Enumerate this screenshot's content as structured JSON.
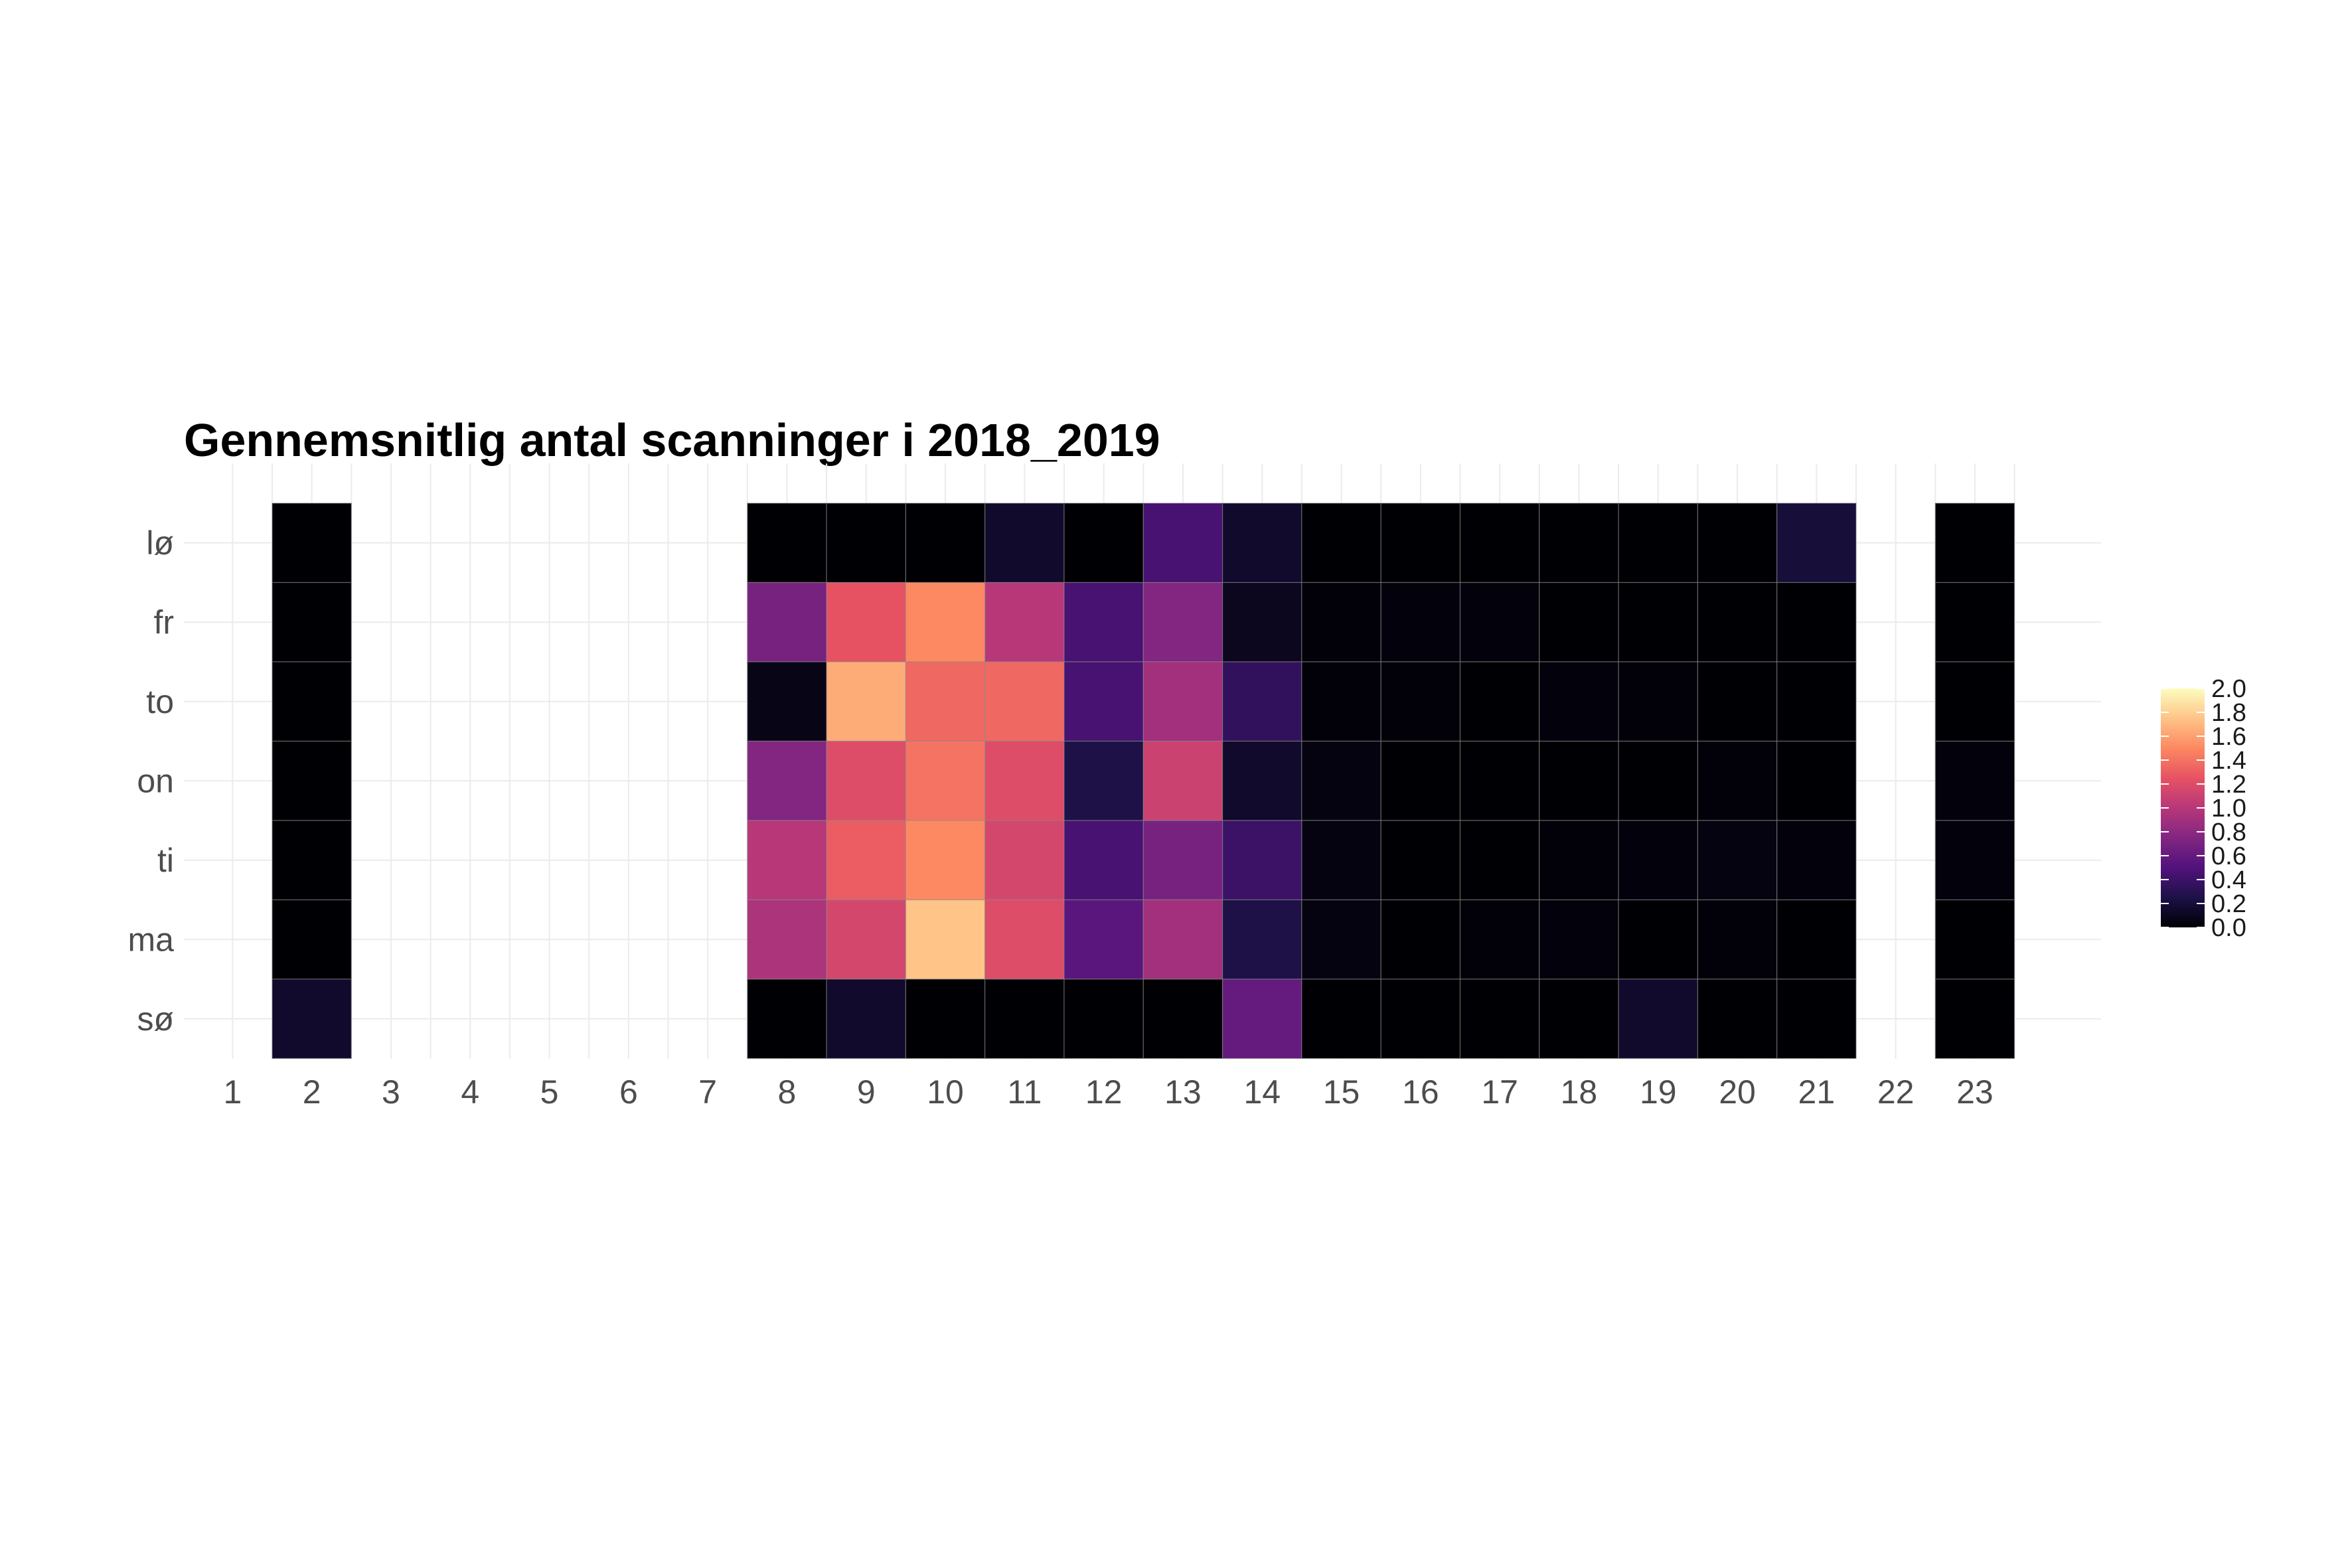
{
  "chart_data": {
    "type": "heatmap",
    "title": "Gennemsnitlig antal scanninger i 2018_2019",
    "xlabel": "",
    "ylabel": "",
    "x": [
      1,
      2,
      3,
      4,
      5,
      6,
      7,
      8,
      9,
      10,
      11,
      12,
      13,
      14,
      15,
      16,
      17,
      18,
      19,
      20,
      21,
      22,
      23
    ],
    "y": [
      "lø",
      "fr",
      "to",
      "on",
      "ti",
      "ma",
      "sø"
    ],
    "values": {
      "lø": [
        null,
        0.0,
        null,
        null,
        null,
        null,
        null,
        0.0,
        0.0,
        0.0,
        0.15,
        0.0,
        0.45,
        0.15,
        0.0,
        0.0,
        0.0,
        0.0,
        0.0,
        0.0,
        0.2,
        null,
        0.0
      ],
      "fr": [
        null,
        0.0,
        null,
        null,
        null,
        null,
        null,
        0.7,
        1.25,
        1.5,
        1.0,
        0.45,
        0.75,
        0.1,
        0.02,
        0.03,
        0.03,
        0.0,
        0.0,
        0.0,
        0.0,
        null,
        0.0
      ],
      "to": [
        null,
        0.0,
        null,
        null,
        null,
        null,
        null,
        0.07,
        1.65,
        1.35,
        1.35,
        0.45,
        0.9,
        0.35,
        0.02,
        0.02,
        0.0,
        0.03,
        0.02,
        0.0,
        0.0,
        null,
        0.0
      ],
      "on": [
        null,
        0.0,
        null,
        null,
        null,
        null,
        null,
        0.75,
        1.2,
        1.4,
        1.2,
        0.25,
        1.1,
        0.15,
        0.05,
        0.0,
        0.0,
        0.0,
        0.0,
        0.02,
        0.0,
        null,
        0.03
      ],
      "ti": [
        null,
        0.0,
        null,
        null,
        null,
        null,
        null,
        1.0,
        1.3,
        1.5,
        1.15,
        0.45,
        0.7,
        0.4,
        0.05,
        0.0,
        0.0,
        0.02,
        0.03,
        0.05,
        0.03,
        null,
        0.03
      ],
      "ma": [
        null,
        0.0,
        null,
        null,
        null,
        null,
        null,
        0.95,
        1.15,
        1.75,
        1.2,
        0.55,
        0.9,
        0.25,
        0.05,
        0.0,
        0.02,
        0.03,
        0.0,
        0.02,
        0.0,
        null,
        0.0
      ],
      "sø": [
        null,
        0.15,
        null,
        null,
        null,
        null,
        null,
        0.0,
        0.15,
        0.0,
        0.0,
        0.0,
        0.0,
        0.6,
        0.0,
        0.0,
        0.0,
        0.0,
        0.15,
        0.0,
        0.0,
        null,
        0.0
      ]
    },
    "color_scale": {
      "name": "magma",
      "range": [
        0.0,
        2.0
      ],
      "ticks": [
        0.0,
        0.2,
        0.4,
        0.6,
        0.8,
        1.0,
        1.2,
        1.4,
        1.6,
        1.8,
        2.0
      ],
      "tick_labels": [
        "0.0",
        "0.2",
        "0.4",
        "0.6",
        "0.8",
        "1.0",
        "1.2",
        "1.4",
        "1.6",
        "1.8",
        "2.0"
      ],
      "stops": [
        "#000004",
        "#1d1147",
        "#51127c",
        "#822681",
        "#b73779",
        "#e75263",
        "#fc8961",
        "#fec488",
        "#fcfdbf"
      ]
    },
    "legend_position": "right",
    "grid": true
  }
}
